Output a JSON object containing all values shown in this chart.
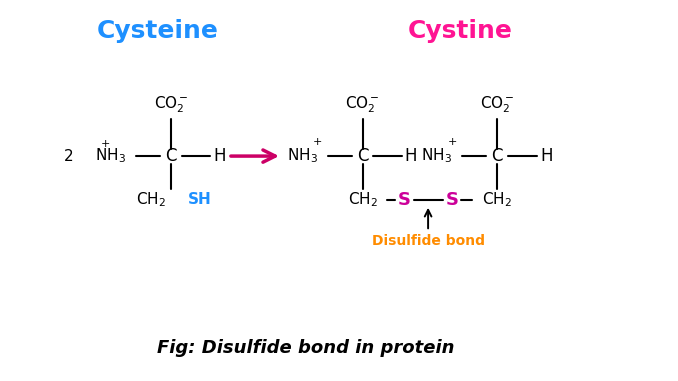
{
  "bg_color": "#ffffff",
  "title_cysteine": "Cysteine",
  "title_cystine": "Cystine",
  "title_cysteine_color": "#1e90ff",
  "title_cystine_color": "#ff1493",
  "fig_caption": "Fig: Disulfide bond in protein",
  "arrow_color": "#cc0066",
  "sulfur_color": "#cc0099",
  "sh_color": "#1e90ff",
  "disulfide_label_color": "#ff8c00",
  "black": "#000000"
}
